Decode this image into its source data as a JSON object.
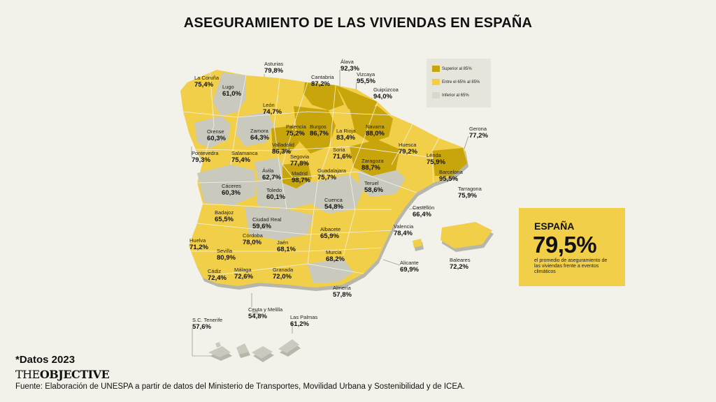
{
  "title": "ASEGURAMIENTO DE LAS VIVIENDAS EN ESPAÑA",
  "colors": {
    "superior": "#c8a50a",
    "entre": "#f1cf49",
    "inferior": "#c9c9bd",
    "background": "#f3f2ea"
  },
  "legend": [
    {
      "label": "Superior al 85%",
      "category": "superior"
    },
    {
      "label": "Entre el 65% al 85%",
      "category": "entre"
    },
    {
      "label": "Inferior al 65%",
      "category": "inferior"
    }
  ],
  "regions": [
    {
      "name": "Asturias",
      "value": "79,8%",
      "category": "entre"
    },
    {
      "name": "Álava",
      "value": "92,3%",
      "category": "superior"
    },
    {
      "name": "La Coruña",
      "value": "75,4%",
      "category": "entre"
    },
    {
      "name": "Lugo",
      "value": "61,0%",
      "category": "inferior"
    },
    {
      "name": "Cantabria",
      "value": "87,2%",
      "category": "superior"
    },
    {
      "name": "Vizcaya",
      "value": "95,5%",
      "category": "superior"
    },
    {
      "name": "Guipúzcoa",
      "value": "94,0%",
      "category": "superior"
    },
    {
      "name": "León",
      "value": "74,7%",
      "category": "entre"
    },
    {
      "name": "Orense",
      "value": "60,3%",
      "category": "inferior"
    },
    {
      "name": "Palencia",
      "value": "75,2%",
      "category": "entre"
    },
    {
      "name": "Burgos",
      "value": "86,7%",
      "category": "superior"
    },
    {
      "name": "La Rioja",
      "value": "83,4%",
      "category": "entre"
    },
    {
      "name": "Navarra",
      "value": "88,0%",
      "category": "superior"
    },
    {
      "name": "Zamora",
      "value": "64,3%",
      "category": "inferior"
    },
    {
      "name": "Valladolid",
      "value": "86,3%",
      "category": "superior"
    },
    {
      "name": "Gerona",
      "value": "77,2%",
      "category": "entre"
    },
    {
      "name": "Huesca",
      "value": "79,2%",
      "category": "entre"
    },
    {
      "name": "Pontevedra",
      "value": "79,3%",
      "category": "entre"
    },
    {
      "name": "Salamanca",
      "value": "75,4%",
      "category": "entre"
    },
    {
      "name": "Segovia",
      "value": "77,8%",
      "category": "entre"
    },
    {
      "name": "Soria",
      "value": "71,6%",
      "category": "entre"
    },
    {
      "name": "Lérida",
      "value": "75,9%",
      "category": "entre"
    },
    {
      "name": "Zaragoza",
      "value": "88,7%",
      "category": "superior"
    },
    {
      "name": "Ávila",
      "value": "62,7%",
      "category": "inferior"
    },
    {
      "name": "Madrid",
      "value": "98,7%",
      "category": "superior"
    },
    {
      "name": "Guadalajara",
      "value": "75,7%",
      "category": "entre"
    },
    {
      "name": "Barcelona",
      "value": "95,5%",
      "category": "superior"
    },
    {
      "name": "Cáceres",
      "value": "60,3%",
      "category": "inferior"
    },
    {
      "name": "Toledo",
      "value": "60,1%",
      "category": "inferior"
    },
    {
      "name": "Teruel",
      "value": "58,6%",
      "category": "inferior"
    },
    {
      "name": "Tarragona",
      "value": "75,9%",
      "category": "entre"
    },
    {
      "name": "Cuenca",
      "value": "54,8%",
      "category": "inferior"
    },
    {
      "name": "Castellón",
      "value": "66,4%",
      "category": "entre"
    },
    {
      "name": "Badajoz",
      "value": "65,5%",
      "category": "entre"
    },
    {
      "name": "Ciudad Real",
      "value": "59,6%",
      "category": "inferior"
    },
    {
      "name": "Albacete",
      "value": "65,9%",
      "category": "entre"
    },
    {
      "name": "Valencia",
      "value": "78,4%",
      "category": "entre"
    },
    {
      "name": "Huelva",
      "value": "71,2%",
      "category": "entre"
    },
    {
      "name": "Córdoba",
      "value": "78,0%",
      "category": "entre"
    },
    {
      "name": "Jaén",
      "value": "68,1%",
      "category": "entre"
    },
    {
      "name": "Sevilla",
      "value": "80,9%",
      "category": "entre"
    },
    {
      "name": "Murcia",
      "value": "68,2%",
      "category": "entre"
    },
    {
      "name": "Alicante",
      "value": "69,9%",
      "category": "entre"
    },
    {
      "name": "Baleares",
      "value": "72,2%",
      "category": "entre"
    },
    {
      "name": "Cádiz",
      "value": "72,4%",
      "category": "entre"
    },
    {
      "name": "Málaga",
      "value": "72,6%",
      "category": "entre"
    },
    {
      "name": "Granada",
      "value": "72,0%",
      "category": "entre"
    },
    {
      "name": "Almería",
      "value": "57,8%",
      "category": "inferior"
    },
    {
      "name": "Ceuta y Melilla",
      "value": "54,8%",
      "category": "inferior"
    },
    {
      "name": "S.C. Tenerife",
      "value": "57,6%",
      "category": "inferior"
    },
    {
      "name": "Las Palmas",
      "value": "61,2%",
      "category": "inferior"
    }
  ],
  "summary": {
    "country": "ESPAÑA",
    "value": "79,5%",
    "description": "el promedio de aseguramiento de las viviendas frente a eventos climáticos"
  },
  "footnote": "*Datos 2023",
  "brand": {
    "prefix": "THE",
    "name": "OBJECTIVE"
  },
  "source": "Fuente: Elaboración de UNESPA a partir de datos del Ministerio de Transportes, Movilidad Urbana y Sostenibilidad y de ICEA."
}
